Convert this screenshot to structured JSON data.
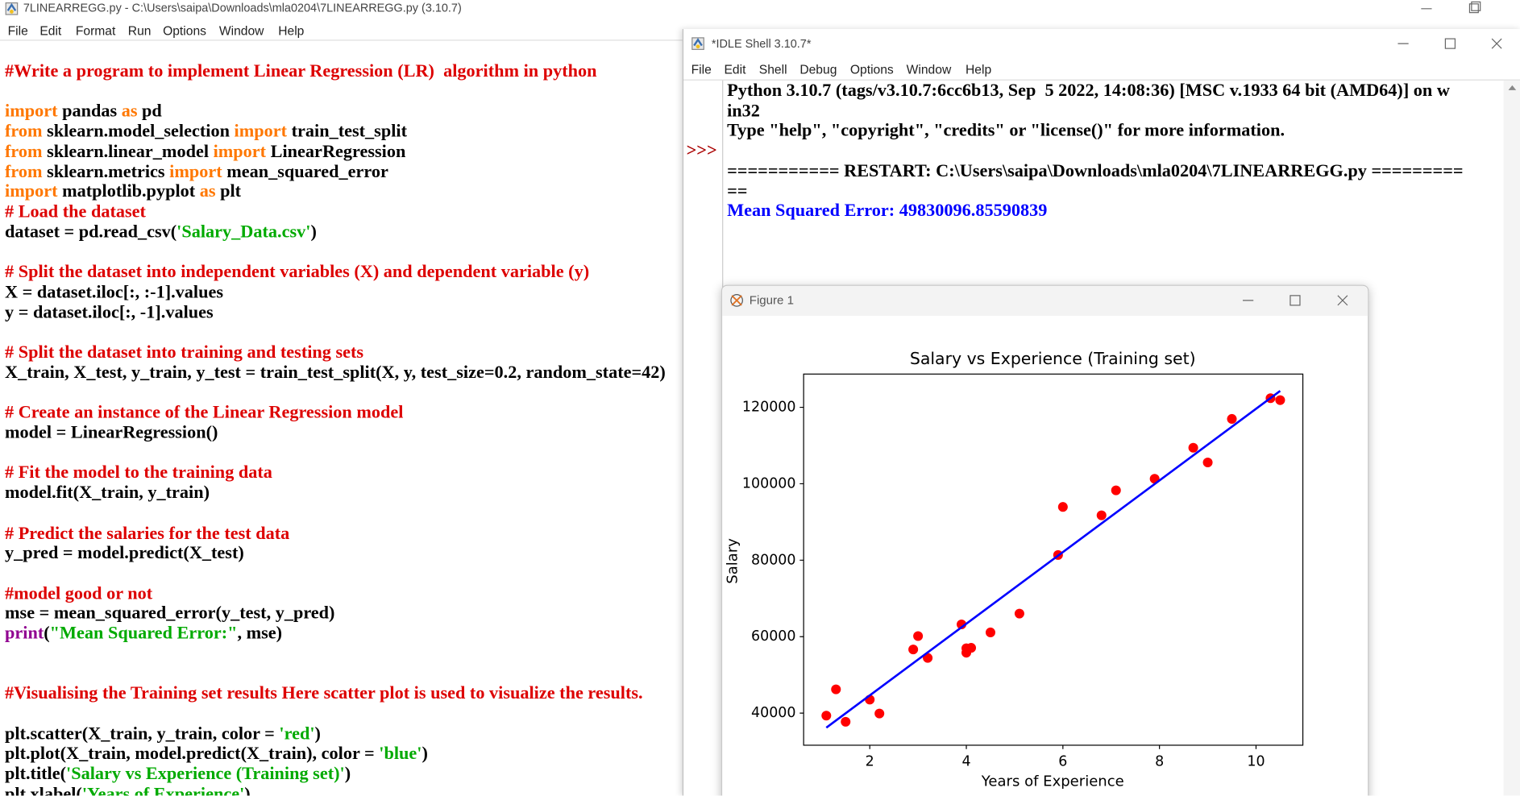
{
  "editor": {
    "title": "7LINEARREGG.py - C:\\Users\\saipa\\Downloads\\mla0204\\7LINEARREGG.py (3.10.7)",
    "menu": [
      "File",
      "Edit",
      "Format",
      "Run",
      "Options",
      "Window",
      "Help"
    ],
    "code": [
      [
        {
          "text": "#Write a program to implement Linear Regression (LR)  algorithm in python",
          "color": "#dd0000"
        }
      ],
      [],
      [
        {
          "text": "import",
          "color": "#ff7700"
        },
        {
          "text": " pandas ",
          "color": "#000000"
        },
        {
          "text": "as",
          "color": "#ff7700"
        },
        {
          "text": " pd",
          "color": "#000000"
        }
      ],
      [
        {
          "text": "from",
          "color": "#ff7700"
        },
        {
          "text": " sklearn.model_selection ",
          "color": "#000000"
        },
        {
          "text": "import",
          "color": "#ff7700"
        },
        {
          "text": " train_test_split",
          "color": "#000000"
        }
      ],
      [
        {
          "text": "from",
          "color": "#ff7700"
        },
        {
          "text": " sklearn.linear_model ",
          "color": "#000000"
        },
        {
          "text": "import",
          "color": "#ff7700"
        },
        {
          "text": " LinearRegression",
          "color": "#000000"
        }
      ],
      [
        {
          "text": "from",
          "color": "#ff7700"
        },
        {
          "text": " sklearn.metrics ",
          "color": "#000000"
        },
        {
          "text": "import",
          "color": "#ff7700"
        },
        {
          "text": " mean_squared_error",
          "color": "#000000"
        }
      ],
      [
        {
          "text": "import",
          "color": "#ff7700"
        },
        {
          "text": " matplotlib.pyplot ",
          "color": "#000000"
        },
        {
          "text": "as",
          "color": "#ff7700"
        },
        {
          "text": " plt",
          "color": "#000000"
        }
      ],
      [
        {
          "text": "# Load the dataset",
          "color": "#dd0000"
        }
      ],
      [
        {
          "text": "dataset = pd.read_csv(",
          "color": "#000000"
        },
        {
          "text": "'Salary_Data.csv'",
          "color": "#00aa00"
        },
        {
          "text": ")",
          "color": "#000000"
        }
      ],
      [],
      [
        {
          "text": "# Split the dataset into independent variables (X) and dependent variable (y)",
          "color": "#dd0000"
        }
      ],
      [
        {
          "text": "X = dataset.iloc[:, :-1].values",
          "color": "#000000"
        }
      ],
      [
        {
          "text": "y = dataset.iloc[:, -1].values",
          "color": "#000000"
        }
      ],
      [],
      [
        {
          "text": "# Split the dataset into training and testing sets",
          "color": "#dd0000"
        }
      ],
      [
        {
          "text": "X_train, X_test, y_train, y_test = train_test_split(X, y, test_size=0.2, random_state=42)",
          "color": "#000000"
        }
      ],
      [],
      [
        {
          "text": "# Create an instance of the Linear Regression model",
          "color": "#dd0000"
        }
      ],
      [
        {
          "text": "model = LinearRegression()",
          "color": "#000000"
        }
      ],
      [],
      [
        {
          "text": "# Fit the model to the training data",
          "color": "#dd0000"
        }
      ],
      [
        {
          "text": "model.fit(X_train, y_train)",
          "color": "#000000"
        }
      ],
      [],
      [
        {
          "text": "# Predict the salaries for the test data",
          "color": "#dd0000"
        }
      ],
      [
        {
          "text": "y_pred = model.predict(X_test)",
          "color": "#000000"
        }
      ],
      [],
      [
        {
          "text": "#model good or not",
          "color": "#dd0000"
        }
      ],
      [
        {
          "text": "mse = mean_squared_error(y_test, y_pred)",
          "color": "#000000"
        }
      ],
      [
        {
          "text": "print",
          "color": "#900090"
        },
        {
          "text": "(",
          "color": "#000000"
        },
        {
          "text": "\"Mean Squared Error:\"",
          "color": "#00aa00"
        },
        {
          "text": ", mse)",
          "color": "#000000"
        }
      ],
      [],
      [],
      [
        {
          "text": "#Visualising the Training set results Here scatter plot is used to visualize the results.",
          "color": "#dd0000"
        }
      ],
      [],
      [
        {
          "text": "plt.scatter(X_train, y_train, color = ",
          "color": "#000000"
        },
        {
          "text": "'red'",
          "color": "#00aa00"
        },
        {
          "text": ")",
          "color": "#000000"
        }
      ],
      [
        {
          "text": "plt.plot(X_train, model.predict(X_train), color = ",
          "color": "#000000"
        },
        {
          "text": "'blue'",
          "color": "#00aa00"
        },
        {
          "text": ")",
          "color": "#000000"
        }
      ],
      [
        {
          "text": "plt.title(",
          "color": "#000000"
        },
        {
          "text": "'Salary vs Experience (Training set)'",
          "color": "#00aa00"
        },
        {
          "text": ")",
          "color": "#000000"
        }
      ],
      [
        {
          "text": "plt.xlabel(",
          "color": "#000000"
        },
        {
          "text": "'Years of Experience'",
          "color": "#00aa00"
        },
        {
          "text": ")",
          "color": "#000000"
        }
      ]
    ]
  },
  "shell": {
    "title": "*IDLE Shell 3.10.7*",
    "menu": [
      "File",
      "Edit",
      "Shell",
      "Debug",
      "Options",
      "Window",
      "Help"
    ],
    "prompt": ">>>",
    "lines": [
      [
        {
          "text": "Python 3.10.7 (tags/v3.10.7:6cc6b13, Sep  5 2022, 14:08:36) [MSC v.1933 64 bit (AMD64)] on w",
          "color": "#000000"
        }
      ],
      [
        {
          "text": "in32",
          "color": "#000000"
        }
      ],
      [
        {
          "text": "Type \"help\", \"copyright\", \"credits\" or \"license()\" for more information.",
          "color": "#000000"
        }
      ],
      [],
      [
        {
          "text": "=========== RESTART: C:\\Users\\saipa\\Downloads\\mla0204\\7LINEARREGG.py =========",
          "color": "#000000"
        }
      ],
      [
        {
          "text": "==",
          "color": "#000000"
        }
      ],
      [
        {
          "text": "Mean Squared Error: 49830096.85590839",
          "color": "#0000ff"
        }
      ]
    ]
  },
  "figure": {
    "title": "Figure 1",
    "chart_data": {
      "type": "scatter",
      "title": "Salary vs Experience (Training set)",
      "xlabel": "Years of Experience",
      "ylabel": "Salary",
      "xlim": [
        0.63,
        10.97
      ],
      "ylim": [
        31600,
        128700
      ],
      "xticks": [
        2,
        4,
        6,
        8,
        10
      ],
      "yticks": [
        40000,
        60000,
        80000,
        100000,
        120000
      ],
      "series": [
        {
          "type": "scatter",
          "color": "#ff0000",
          "x": [
            1.1,
            1.3,
            1.5,
            2.0,
            2.2,
            2.9,
            3.0,
            3.2,
            3.9,
            4.0,
            4.0,
            4.1,
            4.5,
            5.1,
            5.9,
            6.0,
            6.8,
            7.1,
            7.9,
            8.7,
            9.0,
            9.5,
            10.3,
            10.5
          ],
          "values": [
            39343,
            46205,
            37731,
            43525,
            39891,
            56642,
            60150,
            54445,
            63218,
            55794,
            56957,
            57081,
            61111,
            66029,
            81363,
            93940,
            91738,
            98273,
            101302,
            109431,
            105582,
            116969,
            122391,
            121872
          ]
        },
        {
          "type": "line",
          "color": "#0000ff",
          "x": [
            1.1,
            10.5
          ],
          "values": [
            36200,
            124300
          ]
        }
      ]
    }
  }
}
